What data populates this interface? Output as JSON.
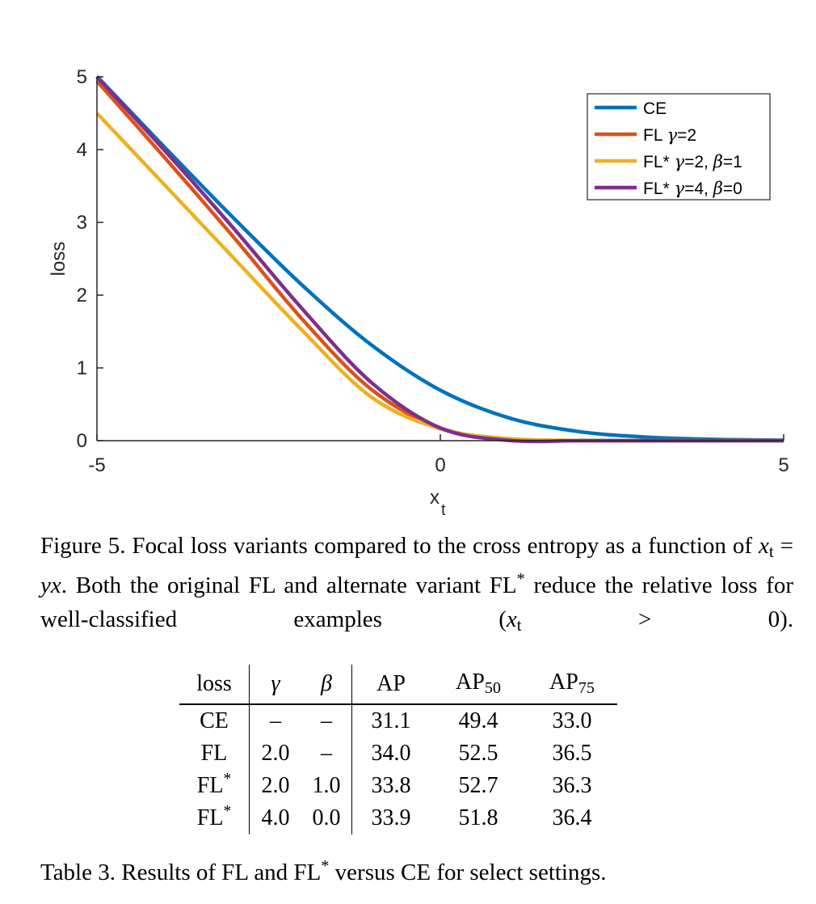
{
  "chart_data": {
    "type": "line",
    "xlabel": "x",
    "xlabel_sub": "t",
    "ylabel": "loss",
    "xlim": [
      -5,
      5
    ],
    "ylim": [
      0,
      5
    ],
    "xticks": [
      "-5",
      "0",
      "5"
    ],
    "yticks": [
      "0",
      "1",
      "2",
      "3",
      "4",
      "5"
    ],
    "grid": false,
    "legend_position": "top-right",
    "series": [
      {
        "name": "CE",
        "legend": [
          "CE"
        ],
        "color": "#0072BD",
        "x": [
          -5,
          -4,
          -3,
          -2,
          -1,
          0,
          1,
          2,
          3,
          4,
          5
        ],
        "y": [
          5.007,
          4.018,
          3.049,
          2.127,
          1.313,
          0.693,
          0.313,
          0.127,
          0.049,
          0.018,
          0.007
        ]
      },
      {
        "name": "FL γ=2",
        "legend": [
          "FL ",
          "γ",
          "=2"
        ],
        "color": "#D95319",
        "x": [
          -5,
          -4,
          -3,
          -2,
          -1,
          0,
          1,
          2,
          3,
          4,
          5
        ],
        "y": [
          4.94,
          3.875,
          2.785,
          1.658,
          0.702,
          0.173,
          0.026,
          0.002,
          0.0,
          0.0,
          0.0
        ]
      },
      {
        "name": "FL* γ=2, β=1",
        "legend": [
          "FL* ",
          "γ",
          "=2, ",
          "β",
          "=1"
        ],
        "color": "#EDB120",
        "x": [
          -5,
          -4,
          -3,
          -2,
          -1,
          0,
          1,
          2,
          3,
          4,
          5
        ],
        "y": [
          4.5,
          3.5,
          2.5,
          1.505,
          0.596,
          0.163,
          0.025,
          0.003,
          0.0,
          0.0,
          0.0
        ]
      },
      {
        "name": "FL* γ=4, β=0",
        "legend": [
          "FL* ",
          "γ",
          "=4, ",
          "β",
          "=0"
        ],
        "color": "#7E2F8E",
        "x": [
          -5,
          -4,
          -3,
          -2,
          -1,
          0,
          1,
          2,
          3,
          4,
          5
        ],
        "y": [
          5.0,
          3.972,
          2.907,
          1.8,
          0.797,
          0.174,
          0.004,
          0.0,
          0.0,
          0.0,
          0.0
        ]
      }
    ]
  },
  "figure_caption": {
    "prefix": "Figure 5. Focal loss variants compared to the cross entropy as a function of ",
    "eq_lhs": "x",
    "eq_lhs_sub": "t",
    "eq_eq": " = ",
    "eq_rhs": "yx",
    "mid": ". Both the original FL and alternate variant FL",
    "star": "*",
    "suffix": " reduce the relative loss for well-classified examples (",
    "cond_var": "x",
    "cond_sub": "t",
    "cond_rest": " > 0)."
  },
  "table": {
    "header": {
      "loss": "loss",
      "gamma": "γ",
      "beta": "β",
      "ap": "AP",
      "ap50": "AP",
      "ap50_sub": "50",
      "ap75": "AP",
      "ap75_sub": "75"
    },
    "rows": [
      {
        "loss": "CE",
        "loss_sup": "",
        "gamma": "–",
        "beta": "–",
        "ap": "31.1",
        "ap50": "49.4",
        "ap75": "33.0"
      },
      {
        "loss": "FL",
        "loss_sup": "",
        "gamma": "2.0",
        "beta": "–",
        "ap": "34.0",
        "ap50": "52.5",
        "ap75": "36.5"
      },
      {
        "loss": "FL",
        "loss_sup": "*",
        "gamma": "2.0",
        "beta": "1.0",
        "ap": "33.8",
        "ap50": "52.7",
        "ap75": "36.3"
      },
      {
        "loss": "FL",
        "loss_sup": "*",
        "gamma": "4.0",
        "beta": "0.0",
        "ap": "33.9",
        "ap50": "51.8",
        "ap75": "36.4"
      }
    ]
  },
  "table_caption": {
    "prefix": "Table 3. Results of FL and FL",
    "star": "*",
    "suffix": " versus CE for select settings."
  }
}
